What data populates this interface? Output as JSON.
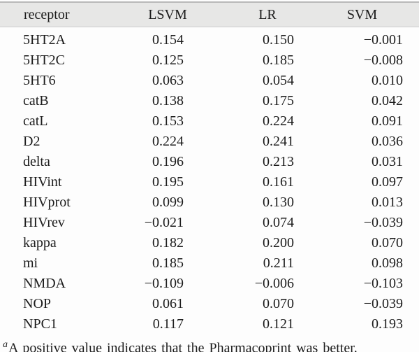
{
  "table": {
    "columns": [
      "receptor",
      "LSVM",
      "LR",
      "SVM"
    ],
    "rows": [
      {
        "receptor": "5HT2A",
        "lsvm": "0.154",
        "lr": "0.150",
        "svm": "−0.001"
      },
      {
        "receptor": "5HT2C",
        "lsvm": "0.125",
        "lr": "0.185",
        "svm": "−0.008"
      },
      {
        "receptor": "5HT6",
        "lsvm": "0.063",
        "lr": "0.054",
        "svm": "0.010"
      },
      {
        "receptor": "catB",
        "lsvm": "0.138",
        "lr": "0.175",
        "svm": "0.042"
      },
      {
        "receptor": "catL",
        "lsvm": "0.153",
        "lr": "0.224",
        "svm": "0.091"
      },
      {
        "receptor": "D2",
        "lsvm": "0.224",
        "lr": "0.241",
        "svm": "0.036"
      },
      {
        "receptor": "delta",
        "lsvm": "0.196",
        "lr": "0.213",
        "svm": "0.031"
      },
      {
        "receptor": "HIVint",
        "lsvm": "0.195",
        "lr": "0.161",
        "svm": "0.097"
      },
      {
        "receptor": "HIVprot",
        "lsvm": "0.099",
        "lr": "0.130",
        "svm": "0.013"
      },
      {
        "receptor": "HIVrev",
        "lsvm": "−0.021",
        "lr": "0.074",
        "svm": "−0.039"
      },
      {
        "receptor": "kappa",
        "lsvm": "0.182",
        "lr": "0.200",
        "svm": "0.070"
      },
      {
        "receptor": "mi",
        "lsvm": "0.185",
        "lr": "0.211",
        "svm": "0.098"
      },
      {
        "receptor": "NMDA",
        "lsvm": "−0.109",
        "lr": "−0.006",
        "svm": "−0.103"
      },
      {
        "receptor": "NOP",
        "lsvm": "0.061",
        "lr": "0.070",
        "svm": "−0.039"
      },
      {
        "receptor": "NPC1",
        "lsvm": "0.117",
        "lr": "0.121",
        "svm": "0.193"
      }
    ],
    "footnote_marker": "a",
    "footnote_text": "A positive value indicates that the Pharmacoprint was better."
  },
  "colors": {
    "header_bg": "#e7e7e6",
    "top_rule": "#b9b9b9",
    "header_underline": "#cdcdcd",
    "text": "#1c1c1c",
    "page_bg": "#fdfdfd"
  }
}
